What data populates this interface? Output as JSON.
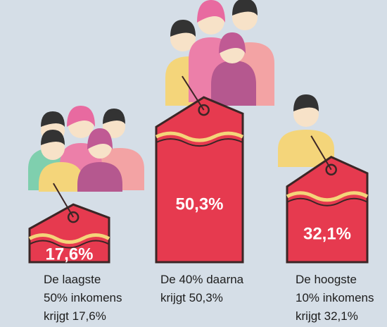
{
  "chart_data": {
    "type": "bar",
    "categories": [
      "De laagste 50% inkomens krijgt 17,6%",
      "De 40% daarna krijgt 50,3%",
      "De hoogste 10% inkomens krijgt 32,1%"
    ],
    "values": [
      17.6,
      50.3,
      32.1
    ],
    "value_labels": [
      "17,6%",
      "50,3%",
      "32,1%"
    ],
    "color": "#e63a4f"
  }
}
